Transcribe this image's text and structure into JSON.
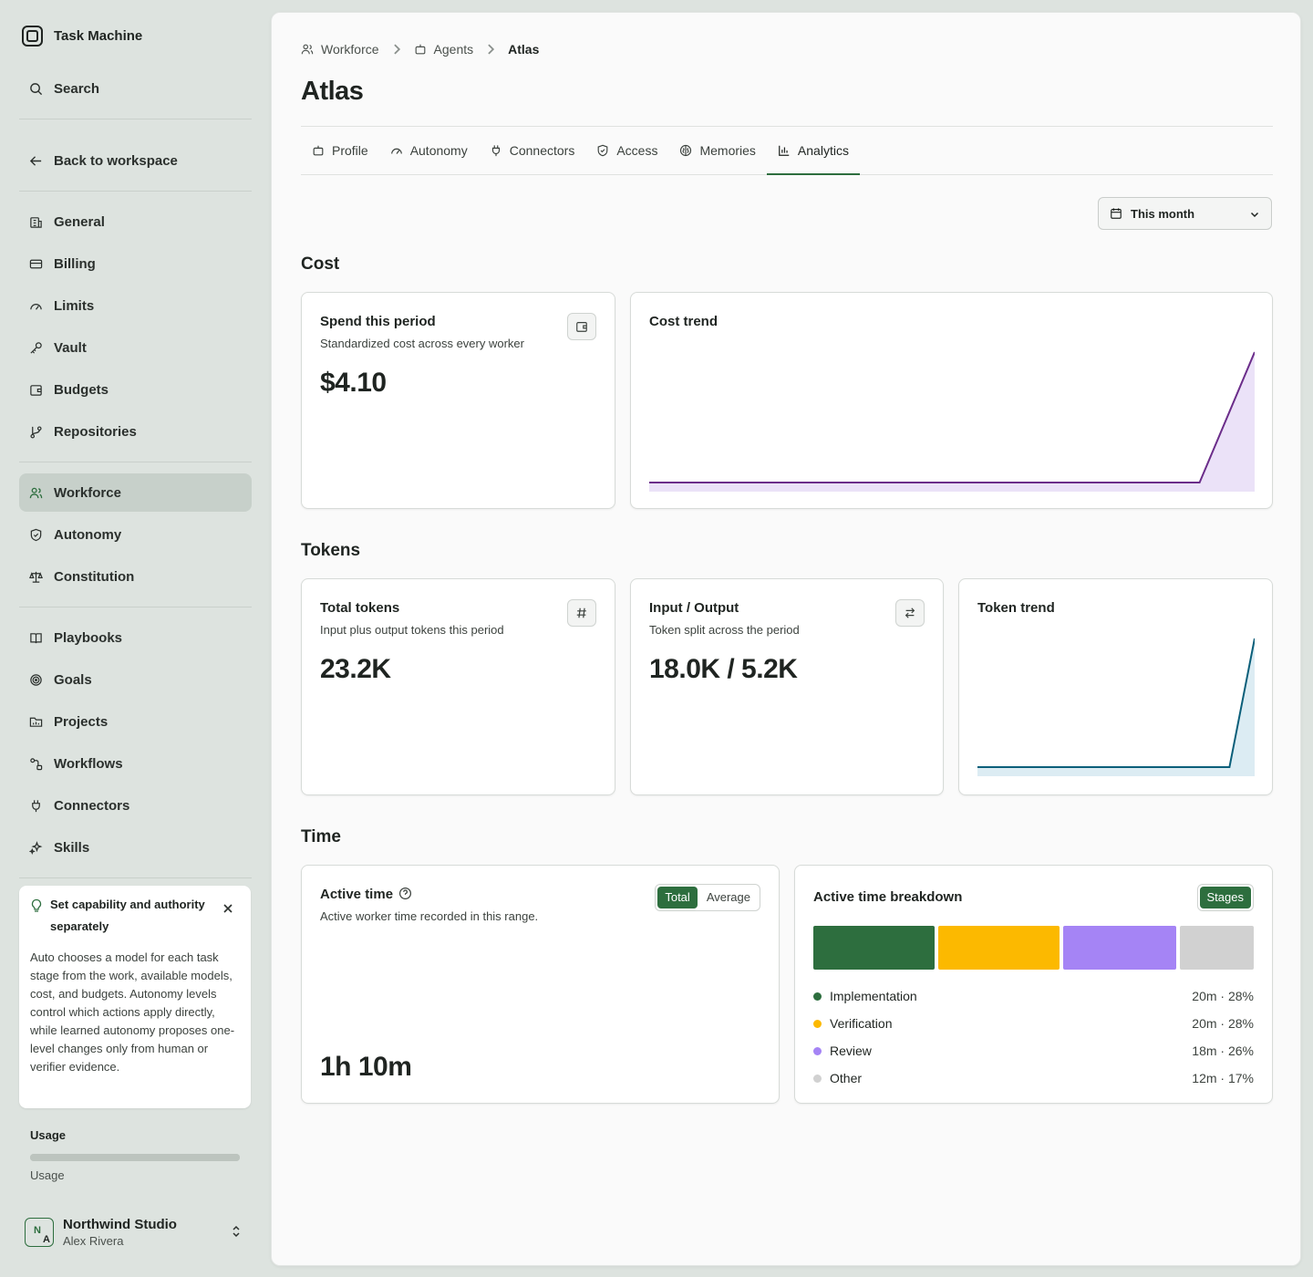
{
  "app": {
    "name": "Task Machine"
  },
  "sidebar": {
    "search_label": "Search",
    "back_label": "Back to workspace",
    "group1": [
      {
        "label": "General",
        "icon": "building-icon"
      },
      {
        "label": "Billing",
        "icon": "credit-card-icon"
      },
      {
        "label": "Limits",
        "icon": "gauge-icon"
      },
      {
        "label": "Vault",
        "icon": "key-icon"
      },
      {
        "label": "Budgets",
        "icon": "wallet-icon"
      },
      {
        "label": "Repositories",
        "icon": "git-branch-icon"
      }
    ],
    "group2": [
      {
        "label": "Workforce",
        "icon": "users-icon",
        "active": true
      },
      {
        "label": "Autonomy",
        "icon": "shield-icon"
      },
      {
        "label": "Constitution",
        "icon": "scale-icon"
      }
    ],
    "group3": [
      {
        "label": "Playbooks",
        "icon": "book-icon"
      },
      {
        "label": "Goals",
        "icon": "target-icon"
      },
      {
        "label": "Projects",
        "icon": "folder-icon"
      },
      {
        "label": "Workflows",
        "icon": "workflow-icon"
      },
      {
        "label": "Connectors",
        "icon": "plug-icon"
      },
      {
        "label": "Skills",
        "icon": "sparkles-icon"
      }
    ],
    "tip": {
      "title": "Set capability and authority separately",
      "body": "Auto chooses a model for each task stage from the work, available models, cost, and budgets. Autonomy levels control which actions apply directly, while learned autonomy proposes one-level changes only from human or verifier evidence."
    },
    "usage": {
      "label": "Usage",
      "sub": "Usage",
      "fraction": 1.0
    },
    "account": {
      "org": "Northwind Studio",
      "user": "Alex Rivera",
      "initials_1": "N",
      "initials_2": "A"
    }
  },
  "breadcrumb": {
    "items": [
      "Workforce",
      "Agents"
    ],
    "current": "Atlas"
  },
  "page": {
    "title": "Atlas"
  },
  "tabs": [
    {
      "label": "Profile",
      "icon": "robot-icon"
    },
    {
      "label": "Autonomy",
      "icon": "gauge-icon"
    },
    {
      "label": "Connectors",
      "icon": "plug-icon"
    },
    {
      "label": "Access",
      "icon": "shield-icon"
    },
    {
      "label": "Memories",
      "icon": "brain-icon"
    },
    {
      "label": "Analytics",
      "icon": "bar-chart-icon",
      "active": true
    }
  ],
  "range": {
    "selected": "This month"
  },
  "sections": {
    "cost": "Cost",
    "tokens": "Tokens",
    "time": "Time"
  },
  "cards": {
    "spend": {
      "title": "Spend this period",
      "subtitle": "Standardized cost across every worker",
      "value": "$4.10"
    },
    "cost_trend": {
      "title": "Cost trend"
    },
    "total_tokens": {
      "title": "Total tokens",
      "subtitle": "Input plus output tokens this period",
      "value": "23.2K"
    },
    "io": {
      "title": "Input / Output",
      "subtitle": "Token split across the period",
      "value": "18.0K / 5.2K"
    },
    "token_trend": {
      "title": "Token trend"
    },
    "active_time": {
      "title": "Active time",
      "subtitle": "Active worker time recorded in this range.",
      "value": "1h 10m",
      "toggle": [
        "Total",
        "Average"
      ],
      "selected": "Total"
    },
    "breakdown": {
      "title": "Active time breakdown",
      "button": "Stages",
      "stages": [
        {
          "name": "Implementation",
          "value": "20m · 28%",
          "share": 28,
          "color": "#2d6e3e"
        },
        {
          "name": "Verification",
          "value": "20m · 28%",
          "share": 28,
          "color": "#fcb900"
        },
        {
          "name": "Review",
          "value": "18m · 26%",
          "share": 26,
          "color": "#a584f5"
        },
        {
          "name": "Other",
          "value": "12m · 17%",
          "share": 17,
          "color": "#d1d1d1"
        }
      ]
    }
  },
  "chart_data": [
    {
      "type": "area",
      "title": "Cost trend",
      "values": [
        0,
        0,
        0,
        0,
        0,
        0,
        0,
        0,
        0,
        0,
        0,
        1
      ],
      "colors": {
        "line": "#6b2d8a",
        "fill": "#ebe2f8"
      }
    },
    {
      "type": "area",
      "title": "Token trend",
      "values": [
        0,
        0,
        0,
        0,
        0,
        0,
        0,
        0,
        0,
        0,
        0,
        1
      ],
      "colors": {
        "line": "#0b5f7a",
        "fill": "#dcecf3"
      }
    }
  ]
}
